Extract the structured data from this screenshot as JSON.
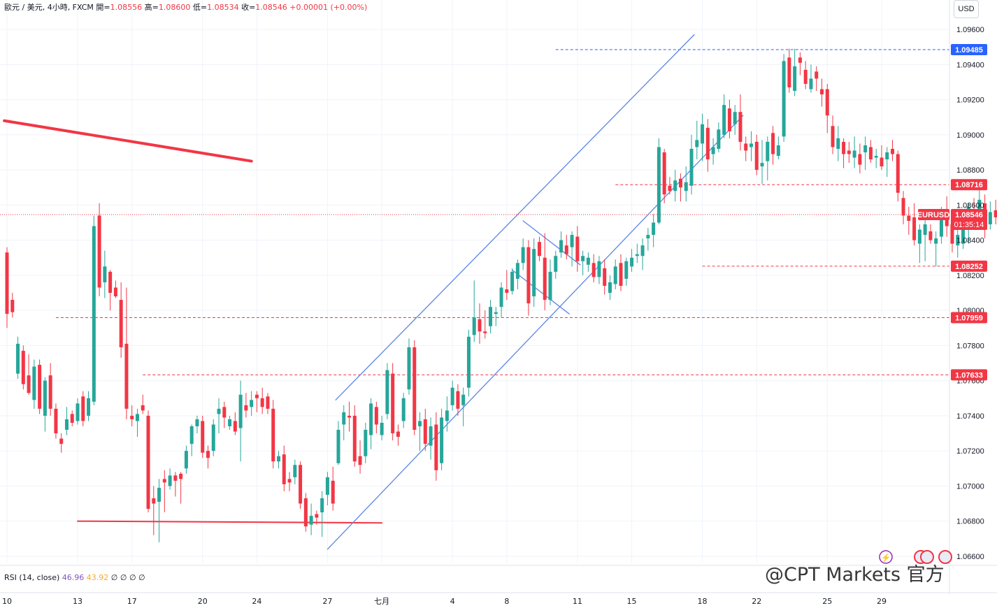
{
  "header": {
    "symbol_text": "歐元 / 美元, 4小時, FXCM",
    "open_label": "開",
    "open": "1.08556",
    "high_label": "高",
    "high": "1.08600",
    "low_label": "低",
    "low": "1.08534",
    "close_label": "收",
    "close": "1.08546",
    "change": "+0.00001 (+0.00%)"
  },
  "currency_button": "USD",
  "indicator": {
    "label": "RSI (14, close)",
    "value1": "46.96",
    "value2": "43.92",
    "zeros": "∅ ∅ ∅ ∅"
  },
  "watermark": "@CPT Markets 官方",
  "colors": {
    "up": "#26a69a",
    "down": "#f23645",
    "channel": "#5b86e5",
    "resistance_blue": "#2962ff"
  },
  "chart_data": {
    "type": "candlestick",
    "symbol": "EURUSD",
    "timeframe": "4小時",
    "y_axis": {
      "min": 1.0656,
      "max": 1.0968,
      "ticks": [
        "1.09600",
        "1.09400",
        "1.09200",
        "1.09000",
        "1.08800",
        "1.08600",
        "1.08400",
        "1.08200",
        "1.08000",
        "1.07800",
        "1.07600",
        "1.07400",
        "1.07200",
        "1.07000",
        "1.06800",
        "1.06600"
      ]
    },
    "x_axis": {
      "labels": [
        {
          "text": "10",
          "i": 0
        },
        {
          "text": "13",
          "i": 13
        },
        {
          "text": "17",
          "i": 23
        },
        {
          "text": "20",
          "i": 36
        },
        {
          "text": "24",
          "i": 46
        },
        {
          "text": "27",
          "i": 59
        },
        {
          "text": "七月",
          "i": 69
        },
        {
          "text": "4",
          "i": 82
        },
        {
          "text": "8",
          "i": 92
        },
        {
          "text": "11",
          "i": 105
        },
        {
          "text": "15",
          "i": 115
        },
        {
          "text": "18",
          "i": 128
        },
        {
          "text": "22",
          "i": 138
        },
        {
          "text": "25",
          "i": 151
        },
        {
          "text": "29",
          "i": 161
        }
      ]
    },
    "price_levels": [
      {
        "value": 1.09485,
        "label": "1.09485",
        "color": "#2962ff",
        "style": "dashed",
        "from_i": 101
      },
      {
        "value": 1.08716,
        "label": "1.08716",
        "color": "#f23645",
        "style": "dashed",
        "from_i": 112
      },
      {
        "value": 1.08252,
        "label": "1.08252",
        "color": "#f23645",
        "style": "dashed",
        "from_i": 128
      },
      {
        "value": 1.07959,
        "label": "1.07959",
        "color": "#f23645",
        "style": "dashed",
        "from_i": 9
      },
      {
        "value": 1.07633,
        "label": "1.07633",
        "color": "#f23645",
        "style": "dashed",
        "from_i": 25
      }
    ],
    "current_price": {
      "value": 1.08546,
      "symbol_label": "EURUSD",
      "price_label": "1.08546",
      "countdown": "01:35:14"
    },
    "trendlines": [
      {
        "color": "#f23645",
        "width": 4,
        "points": [
          [
            -0.5,
            1.0908
          ],
          [
            45,
            1.0885
          ]
        ]
      },
      {
        "color": "#f23645",
        "width": 2,
        "points": [
          [
            13,
            1.068
          ],
          [
            69,
            1.0679
          ]
        ]
      },
      {
        "color": "#5b86e5",
        "width": 1.3,
        "points": [
          [
            60.5,
            1.0749
          ],
          [
            126.5,
            1.0957
          ]
        ]
      },
      {
        "color": "#5b86e5",
        "width": 1.3,
        "points": [
          [
            59,
            1.0664
          ],
          [
            135.5,
            1.0911
          ]
        ]
      },
      {
        "color": "#5b86e5",
        "width": 1.3,
        "points": [
          [
            95,
            1.0851
          ],
          [
            105.5,
            1.0826
          ]
        ]
      },
      {
        "color": "#5b86e5",
        "width": 1.3,
        "points": [
          [
            93,
            1.0823
          ],
          [
            103.5,
            1.0798
          ]
        ]
      }
    ],
    "ohlc": [
      [
        1.0833,
        1.0836,
        1.079,
        1.0798
      ],
      [
        1.0806,
        1.081,
        1.0796,
        1.0799
      ],
      [
        1.0764,
        1.0785,
        1.0761,
        1.0781
      ],
      [
        1.0777,
        1.078,
        1.0755,
        1.0758
      ],
      [
        1.0763,
        1.0775,
        1.0752,
        1.0753
      ],
      [
        1.0749,
        1.0772,
        1.0744,
        1.0768
      ],
      [
        1.0769,
        1.0772,
        1.0741,
        1.0744
      ],
      [
        1.074,
        1.0762,
        1.0731,
        1.076
      ],
      [
        1.0763,
        1.077,
        1.074,
        1.0744
      ],
      [
        1.0744,
        1.0747,
        1.0727,
        1.073
      ],
      [
        1.0727,
        1.073,
        1.0719,
        1.0724
      ],
      [
        1.0732,
        1.0745,
        1.0729,
        1.0738
      ],
      [
        1.0741,
        1.0743,
        1.0734,
        1.0736
      ],
      [
        1.0737,
        1.075,
        1.0735,
        1.0747
      ],
      [
        1.0751,
        1.0754,
        1.0734,
        1.0737
      ],
      [
        1.074,
        1.0754,
        1.0737,
        1.075
      ],
      [
        1.0748,
        1.0854,
        1.0746,
        1.0848
      ],
      [
        1.0854,
        1.0861,
        1.0808,
        1.0813
      ],
      [
        1.0816,
        1.0834,
        1.0807,
        1.0825
      ],
      [
        1.0822,
        1.0823,
        1.08,
        1.081
      ],
      [
        1.0813,
        1.0817,
        1.0807,
        1.0808
      ],
      [
        1.0806,
        1.0816,
        1.0773,
        1.0779
      ],
      [
        1.0781,
        1.0813,
        1.0738,
        1.0744
      ],
      [
        1.074,
        1.0746,
        1.0734,
        1.0738
      ],
      [
        1.0737,
        1.0744,
        1.0728,
        1.0741
      ],
      [
        1.0746,
        1.0752,
        1.0741,
        1.0743
      ],
      [
        1.074,
        1.0743,
        1.0685,
        1.0687
      ],
      [
        1.0693,
        1.07,
        1.0672,
        1.069
      ],
      [
        1.0691,
        1.0704,
        1.0668,
        1.0699
      ],
      [
        1.0704,
        1.0709,
        1.0685,
        1.0702
      ],
      [
        1.07,
        1.071,
        1.0698,
        1.0706
      ],
      [
        1.0706,
        1.0708,
        1.0694,
        1.0703
      ],
      [
        1.0707,
        1.0708,
        1.069,
        1.0704
      ],
      [
        1.071,
        1.0723,
        1.0707,
        1.072
      ],
      [
        1.0724,
        1.0735,
        1.0717,
        1.0734
      ],
      [
        1.0734,
        1.074,
        1.073,
        1.0738
      ],
      [
        1.0737,
        1.074,
        1.0716,
        1.0719
      ],
      [
        1.072,
        1.0723,
        1.071,
        1.0716
      ],
      [
        1.072,
        1.0738,
        1.0717,
        1.0735
      ],
      [
        1.0741,
        1.075,
        1.073,
        1.0744
      ],
      [
        1.0745,
        1.0748,
        1.0733,
        1.0739
      ],
      [
        1.0734,
        1.074,
        1.0732,
        1.0738
      ],
      [
        1.0737,
        1.0742,
        1.0729,
        1.0731
      ],
      [
        1.0733,
        1.076,
        1.0714,
        1.0752
      ],
      [
        1.0746,
        1.0753,
        1.0739,
        1.0743
      ],
      [
        1.0745,
        1.0754,
        1.074,
        1.0749
      ],
      [
        1.0752,
        1.0754,
        1.0742,
        1.075
      ],
      [
        1.075,
        1.0756,
        1.0741,
        1.0745
      ],
      [
        1.0751,
        1.0753,
        1.0741,
        1.0744
      ],
      [
        1.0744,
        1.0749,
        1.071,
        1.0714
      ],
      [
        1.0714,
        1.072,
        1.071,
        1.0717
      ],
      [
        1.0718,
        1.0723,
        1.0697,
        1.0701
      ],
      [
        1.0704,
        1.0708,
        1.0697,
        1.0702
      ],
      [
        1.0705,
        1.0715,
        1.0701,
        1.0712
      ],
      [
        1.0712,
        1.0714,
        1.0687,
        1.069
      ],
      [
        1.0693,
        1.0696,
        1.0674,
        1.0677
      ],
      [
        1.0678,
        1.069,
        1.0672,
        1.0683
      ],
      [
        1.0684,
        1.0686,
        1.0678,
        1.0682
      ],
      [
        1.0685,
        1.0697,
        1.0671,
        1.0693
      ],
      [
        1.0695,
        1.0708,
        1.0689,
        1.0705
      ],
      [
        1.0703,
        1.0711,
        1.0686,
        1.069
      ],
      [
        1.0713,
        1.0737,
        1.0712,
        1.0732
      ],
      [
        1.0735,
        1.0746,
        1.0726,
        1.0742
      ],
      [
        1.074,
        1.0748,
        1.0731,
        1.0739
      ],
      [
        1.074,
        1.0746,
        1.0711,
        1.0714
      ],
      [
        1.0717,
        1.0726,
        1.0707,
        1.0712
      ],
      [
        1.0717,
        1.0736,
        1.0713,
        1.0732
      ],
      [
        1.0729,
        1.075,
        1.0721,
        1.0747
      ],
      [
        1.0745,
        1.0748,
        1.073,
        1.0735
      ],
      [
        1.0729,
        1.074,
        1.0726,
        1.0736
      ],
      [
        1.0741,
        1.077,
        1.0738,
        1.0766
      ],
      [
        1.0764,
        1.077,
        1.0726,
        1.073
      ],
      [
        1.0731,
        1.0735,
        1.0723,
        1.0728
      ],
      [
        1.0737,
        1.0753,
        1.0733,
        1.075
      ],
      [
        1.0755,
        1.0784,
        1.0752,
        1.0779
      ],
      [
        1.0779,
        1.0783,
        1.0729,
        1.0732
      ],
      [
        1.0734,
        1.0742,
        1.072,
        1.0737
      ],
      [
        1.0738,
        1.0744,
        1.072,
        1.0724
      ],
      [
        1.0723,
        1.0739,
        1.0715,
        1.0734
      ],
      [
        1.0735,
        1.0742,
        1.0703,
        1.0709
      ],
      [
        1.0713,
        1.0744,
        1.0709,
        1.0739
      ],
      [
        1.0737,
        1.0751,
        1.0731,
        1.0743
      ],
      [
        1.0746,
        1.076,
        1.0743,
        1.0756
      ],
      [
        1.0754,
        1.0758,
        1.074,
        1.0744
      ],
      [
        1.0746,
        1.0756,
        1.0734,
        1.0752
      ],
      [
        1.0756,
        1.0789,
        1.0751,
        1.0785
      ],
      [
        1.0786,
        1.0817,
        1.0782,
        1.0796
      ],
      [
        1.0795,
        1.0804,
        1.0781,
        1.0788
      ],
      [
        1.0788,
        1.08,
        1.0784,
        1.0787
      ],
      [
        1.0791,
        1.0806,
        1.0787,
        1.0802
      ],
      [
        1.0798,
        1.0802,
        1.0791,
        1.0799
      ],
      [
        1.0802,
        1.0816,
        1.0796,
        1.0813
      ],
      [
        1.0812,
        1.0823,
        1.0806,
        1.081
      ],
      [
        1.0811,
        1.0824,
        1.0809,
        1.0822
      ],
      [
        1.0818,
        1.0829,
        1.0812,
        1.0827
      ],
      [
        1.0827,
        1.0841,
        1.0823,
        1.0836
      ],
      [
        1.0836,
        1.084,
        1.0797,
        1.0804
      ],
      [
        1.0808,
        1.0841,
        1.0802,
        1.0835
      ],
      [
        1.0839,
        1.0842,
        1.0828,
        1.0831
      ],
      [
        1.083,
        1.0844,
        1.08,
        1.0806
      ],
      [
        1.0806,
        1.0829,
        1.0803,
        1.0822
      ],
      [
        1.0822,
        1.0834,
        1.0818,
        1.0831
      ],
      [
        1.0833,
        1.0845,
        1.083,
        1.084
      ],
      [
        1.0837,
        1.0843,
        1.0829,
        1.0832
      ],
      [
        1.0836,
        1.0845,
        1.0825,
        1.0843
      ],
      [
        1.0842,
        1.0848,
        1.0822,
        1.0828
      ],
      [
        1.0828,
        1.0834,
        1.082,
        1.0831
      ],
      [
        1.0826,
        1.0833,
        1.0822,
        1.083
      ],
      [
        1.0827,
        1.0832,
        1.0816,
        1.0819
      ],
      [
        1.0819,
        1.0831,
        1.0815,
        1.0828
      ],
      [
        1.0824,
        1.0829,
        1.0809,
        1.0814
      ],
      [
        1.081,
        1.082,
        1.0806,
        1.0816
      ],
      [
        1.0815,
        1.0829,
        1.0812,
        1.0825
      ],
      [
        1.0827,
        1.0832,
        1.0811,
        1.0814
      ],
      [
        1.0818,
        1.083,
        1.0814,
        1.0828
      ],
      [
        1.0825,
        1.0835,
        1.0822,
        1.083
      ],
      [
        1.0831,
        1.0838,
        1.0827,
        1.0832
      ],
      [
        1.0831,
        1.0841,
        1.0823,
        1.0837
      ],
      [
        1.0841,
        1.0847,
        1.0834,
        1.0843
      ],
      [
        1.0843,
        1.0855,
        1.0836,
        1.085
      ],
      [
        1.085,
        1.0898,
        1.0849,
        1.0893
      ],
      [
        1.089,
        1.0892,
        1.0861,
        1.0866
      ],
      [
        1.0871,
        1.0876,
        1.0866,
        1.0868
      ],
      [
        1.0868,
        1.088,
        1.0862,
        1.0874
      ],
      [
        1.0875,
        1.0878,
        1.0862,
        1.087
      ],
      [
        1.0868,
        1.0882,
        1.0862,
        1.0873
      ],
      [
        1.0871,
        1.09,
        1.0866,
        1.0892
      ],
      [
        1.0893,
        1.0908,
        1.0886,
        1.0897
      ],
      [
        1.0895,
        1.0912,
        1.0885,
        1.0906
      ],
      [
        1.0904,
        1.0909,
        1.0879,
        1.0886
      ],
      [
        1.0889,
        1.0898,
        1.0883,
        1.0893
      ],
      [
        1.0892,
        1.0907,
        1.089,
        1.0903
      ],
      [
        1.09,
        1.0923,
        1.0898,
        1.0917
      ],
      [
        1.0915,
        1.092,
        1.0898,
        1.0902
      ],
      [
        1.0906,
        1.0917,
        1.09,
        1.0913
      ],
      [
        1.0913,
        1.0923,
        1.0891,
        1.0896
      ],
      [
        1.0895,
        1.0899,
        1.0885,
        1.0891
      ],
      [
        1.0893,
        1.0902,
        1.0885,
        1.0895
      ],
      [
        1.0896,
        1.09,
        1.0877,
        1.088
      ],
      [
        1.0882,
        1.0897,
        1.0872,
        1.0884
      ],
      [
        1.0885,
        1.0899,
        1.0874,
        1.0896
      ],
      [
        1.0901,
        1.0905,
        1.0883,
        1.0889
      ],
      [
        1.0888,
        1.0899,
        1.0886,
        1.0894
      ],
      [
        1.0899,
        1.0946,
        1.0896,
        1.0942
      ],
      [
        1.0944,
        1.0949,
        1.0924,
        1.0927
      ],
      [
        1.0925,
        1.0949,
        1.0922,
        1.0939
      ],
      [
        1.0944,
        1.0947,
        1.0934,
        1.0941
      ],
      [
        1.0937,
        1.0942,
        1.0926,
        1.0929
      ],
      [
        1.0926,
        1.094,
        1.0924,
        1.0932
      ],
      [
        1.0936,
        1.0939,
        1.0925,
        1.0932
      ],
      [
        1.0926,
        1.0932,
        1.0916,
        1.0923
      ],
      [
        1.0926,
        1.0929,
        1.0901,
        1.0911
      ],
      [
        1.0905,
        1.0911,
        1.0889,
        1.0893
      ],
      [
        1.0892,
        1.0905,
        1.0885,
        1.0898
      ],
      [
        1.0896,
        1.0898,
        1.0881,
        1.0889
      ],
      [
        1.0891,
        1.0896,
        1.0884,
        1.0889
      ],
      [
        1.0887,
        1.0899,
        1.0881,
        1.0891
      ],
      [
        1.0889,
        1.0895,
        1.0878,
        1.0883
      ],
      [
        1.089,
        1.0899,
        1.088,
        1.0894
      ],
      [
        1.0893,
        1.0897,
        1.0884,
        1.0886
      ],
      [
        1.0887,
        1.0892,
        1.0881,
        1.0888
      ],
      [
        1.0887,
        1.0894,
        1.088,
        1.0882
      ],
      [
        1.0886,
        1.0893,
        1.0876,
        1.089
      ],
      [
        1.0892,
        1.0897,
        1.0885,
        1.0889
      ],
      [
        1.0889,
        1.0891,
        1.0862,
        1.0867
      ],
      [
        1.0864,
        1.0868,
        1.0849,
        1.0854
      ],
      [
        1.0854,
        1.0859,
        1.0843,
        1.0851
      ],
      [
        1.0853,
        1.0861,
        1.0837,
        1.084
      ],
      [
        1.0838,
        1.0849,
        1.0827,
        1.0846
      ],
      [
        1.0843,
        1.0853,
        1.0828,
        1.0849
      ],
      [
        1.0845,
        1.0849,
        1.0838,
        1.084
      ],
      [
        1.0838,
        1.0845,
        1.0825,
        1.0841
      ],
      [
        1.0842,
        1.0859,
        1.0838,
        1.0855
      ],
      [
        1.0853,
        1.0865,
        1.0842,
        1.0848
      ],
      [
        1.0849,
        1.0853,
        1.0833,
        1.0838
      ],
      [
        1.0837,
        1.0851,
        1.083,
        1.0843
      ],
      [
        1.0838,
        1.0853,
        1.0835,
        1.085
      ],
      [
        1.0846,
        1.0861,
        1.0838,
        1.0859
      ],
      [
        1.0856,
        1.0864,
        1.0852,
        1.0854
      ],
      [
        1.0855,
        1.0872,
        1.085,
        1.0863
      ],
      [
        1.0861,
        1.0866,
        1.0841,
        1.0847
      ],
      [
        1.0849,
        1.0862,
        1.0846,
        1.0856
      ],
      [
        1.0857,
        1.0863,
        1.0849,
        1.0853
      ],
      [
        1.0856,
        1.0868,
        1.0852,
        1.0865
      ],
      [
        1.0866,
        1.0869,
        1.0853,
        1.0855
      ],
      [
        1.0856,
        1.086,
        1.0853,
        1.0855
      ]
    ]
  }
}
